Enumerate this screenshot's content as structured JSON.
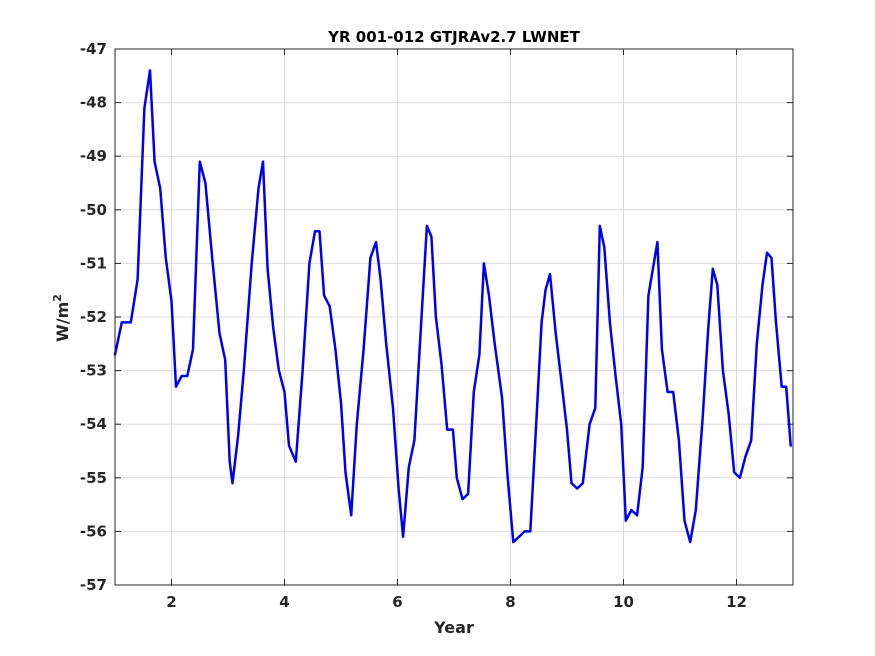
{
  "chart_data": {
    "type": "line",
    "title": "YR 001-012 GTJRAv2.7 LWNET",
    "xlabel": "Year",
    "ylabel_base": "W/m",
    "ylabel_sup": "2",
    "xlim": [
      1,
      13
    ],
    "ylim": [
      -57,
      -47
    ],
    "xticks": [
      2,
      4,
      6,
      8,
      10,
      12
    ],
    "yticks": [
      -57,
      -56,
      -55,
      -54,
      -53,
      -52,
      -51,
      -50,
      -49,
      -48,
      -47
    ],
    "grid": true,
    "color": "#0000ee",
    "series": [
      {
        "x": [
          1.0,
          1.12,
          1.28,
          1.4,
          1.52,
          1.62,
          1.7,
          1.8,
          1.9,
          2.0,
          2.08,
          2.18,
          2.28,
          2.38,
          2.5,
          2.6,
          2.72,
          2.85,
          2.95,
          3.03,
          3.08,
          3.18,
          3.28,
          3.42,
          3.54,
          3.62,
          3.7,
          3.8,
          3.9,
          4.0,
          4.08,
          4.2,
          4.32,
          4.44,
          4.54,
          4.62,
          4.7,
          4.8,
          4.9,
          5.0,
          5.08,
          5.18,
          5.28,
          5.4,
          5.52,
          5.62,
          5.7,
          5.8,
          5.92,
          6.02,
          6.1,
          6.2,
          6.3,
          6.42,
          6.52,
          6.6,
          6.68,
          6.78,
          6.88,
          6.98,
          7.05,
          7.15,
          7.25,
          7.35,
          7.45,
          7.53,
          7.62,
          7.72,
          7.85,
          7.95,
          8.05,
          8.15,
          8.25,
          8.35,
          8.45,
          8.55,
          8.62,
          8.7,
          8.8,
          8.9,
          9.0,
          9.08,
          9.18,
          9.28,
          9.4,
          9.5,
          9.58,
          9.66,
          9.76,
          9.86,
          9.96,
          10.04,
          10.14,
          10.24,
          10.34,
          10.44,
          10.52,
          10.6,
          10.68,
          10.78,
          10.88,
          10.98,
          11.08,
          11.18,
          11.28,
          11.4,
          11.5,
          11.58,
          11.66,
          11.76,
          11.86,
          11.96,
          12.06,
          12.16,
          12.26,
          12.36,
          12.46,
          12.54,
          12.62,
          12.7,
          12.8,
          12.88,
          12.96
        ],
        "y": [
          -52.7,
          -52.1,
          -52.1,
          -51.3,
          -48.1,
          -47.4,
          -49.1,
          -49.6,
          -50.9,
          -51.7,
          -53.3,
          -53.1,
          -53.1,
          -52.6,
          -49.1,
          -49.5,
          -50.9,
          -52.3,
          -52.8,
          -54.7,
          -55.1,
          -54.2,
          -53.0,
          -51.0,
          -49.6,
          -49.1,
          -51.1,
          -52.2,
          -53.0,
          -53.4,
          -54.4,
          -54.7,
          -53.0,
          -51.0,
          -50.4,
          -50.4,
          -51.6,
          -51.8,
          -52.6,
          -53.6,
          -54.9,
          -55.7,
          -54.0,
          -52.6,
          -50.9,
          -50.6,
          -51.3,
          -52.5,
          -53.7,
          -55.2,
          -56.1,
          -54.8,
          -54.3,
          -52.1,
          -50.3,
          -50.5,
          -52.0,
          -52.9,
          -54.1,
          -54.1,
          -55.0,
          -55.4,
          -55.3,
          -53.4,
          -52.7,
          -51.0,
          -51.6,
          -52.5,
          -53.5,
          -55.0,
          -56.2,
          -56.1,
          -56.0,
          -56.0,
          -54.1,
          -52.1,
          -51.5,
          -51.2,
          -52.3,
          -53.2,
          -54.1,
          -55.1,
          -55.2,
          -55.1,
          -54.0,
          -53.7,
          -50.3,
          -50.7,
          -52.1,
          -53.1,
          -54.0,
          -55.8,
          -55.6,
          -55.7,
          -54.8,
          -51.6,
          -51.1,
          -50.6,
          -52.6,
          -53.4,
          -53.4,
          -54.3,
          -55.8,
          -56.2,
          -55.6,
          -53.9,
          -52.2,
          -51.1,
          -51.4,
          -53.0,
          -53.8,
          -54.9,
          -55.0,
          -54.6,
          -54.3,
          -52.5,
          -51.4,
          -50.8,
          -50.9,
          -52.1,
          -53.3,
          -53.3,
          -54.4
        ]
      }
    ]
  }
}
